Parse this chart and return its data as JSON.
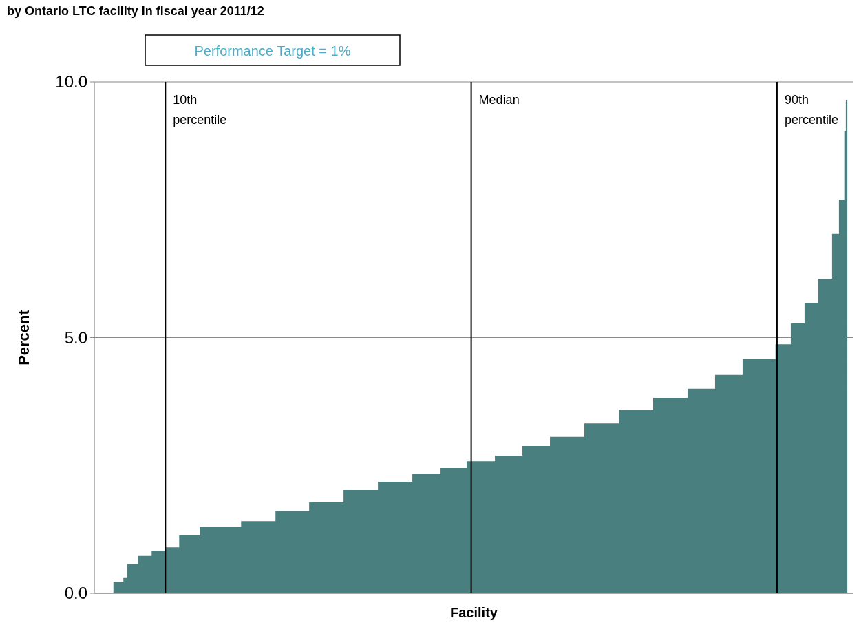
{
  "chart_data": {
    "type": "area",
    "title": "by Ontario LTC facility in fiscal year 2011/12",
    "xlabel": "Facility",
    "ylabel": "Percent",
    "annotations": [
      "Performance Target = 1%"
    ],
    "x": [
      3.2,
      4.5,
      5.0,
      6.4,
      8.2,
      10,
      11.8,
      14.5,
      19.9,
      24.4,
      28.8,
      33.3,
      37.8,
      42.3,
      45.9,
      49.4,
      53.1,
      56.7,
      60.3,
      64.8,
      69.3,
      73.8,
      78.3,
      81.9,
      85.5,
      89.8,
      91.8,
      93.6,
      95.4,
      97.2,
      98.1,
      98.8,
      99.0,
      99.2
    ],
    "series": [
      {
        "color": "#4a7f7f",
        "values": [
          0.23,
          0.3,
          0.57,
          0.73,
          0.83,
          0.9,
          1.13,
          1.3,
          1.41,
          1.61,
          1.78,
          2.02,
          2.18,
          2.34,
          2.45,
          2.58,
          2.69,
          2.88,
          3.06,
          3.32,
          3.59,
          3.82,
          4.0,
          4.27,
          4.58,
          4.87,
          5.28,
          5.68,
          6.15,
          7.03,
          7.7,
          9.04,
          9.65,
          9.65
        ]
      }
    ],
    "xlim": [
      0.7,
      100
    ],
    "ylim": [
      0,
      10
    ],
    "yticks": [
      {
        "value": 0,
        "label": "0.0"
      },
      {
        "value": 5,
        "label": "5.0"
      },
      {
        "value": 10,
        "label": "10.0"
      }
    ],
    "tick_labels": "y",
    "grid": "y",
    "ref_lines": [
      {
        "axis": "x",
        "value": 10,
        "label": "10th percentile",
        "color": "#000000"
      },
      {
        "axis": "x",
        "value": 50,
        "label": "Median",
        "color": "#000000"
      },
      {
        "axis": "x",
        "value": 90,
        "label": "90th percentile",
        "color": "#000000"
      }
    ]
  }
}
